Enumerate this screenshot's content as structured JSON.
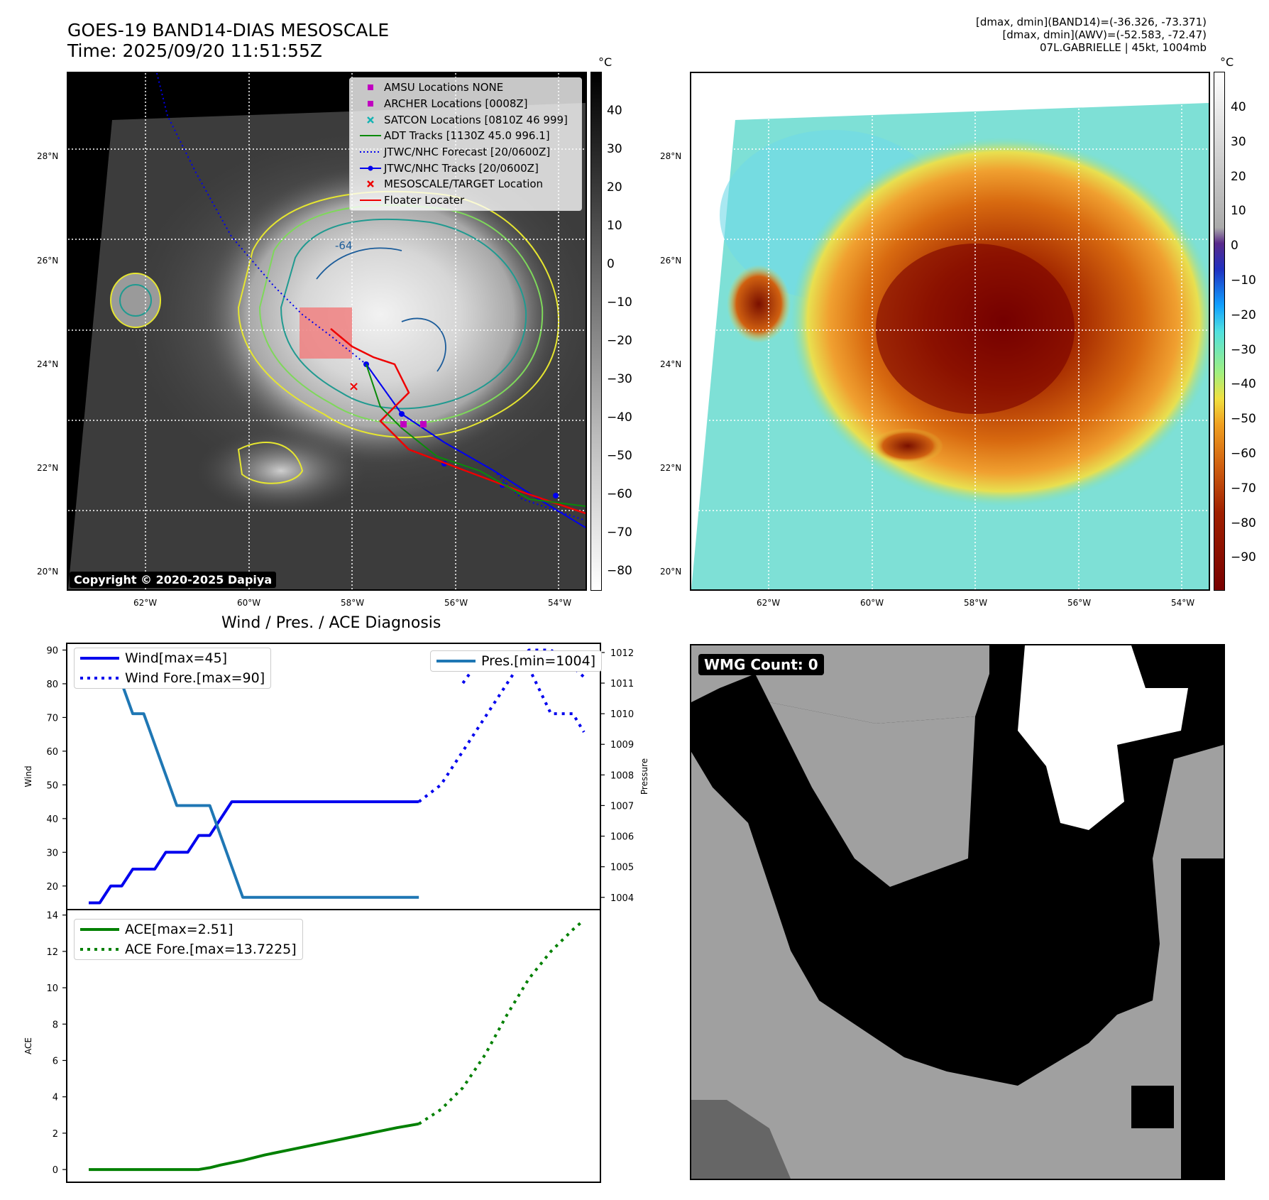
{
  "header": {
    "title_line1": "GOES-19 BAND14-DIAS MESOSCALE",
    "title_line2": "Time: 2025/09/20 11:51:55Z",
    "info_line1": "[dmax, dmin](BAND14)=(-36.326, -73.371)",
    "info_line2": "[dmax, dmin](AWV)=(-52.583, -72.47)",
    "info_line3": "07L.GABRIELLE | 45kt, 1004mb"
  },
  "map": {
    "lat_labels": [
      "28°N",
      "26°N",
      "24°N",
      "22°N",
      "20°N"
    ],
    "lon_labels": [
      "62°W",
      "60°W",
      "58°W",
      "56°W",
      "54°W"
    ],
    "copyright": "Copyright © 2020-2025 Dapiya",
    "contour_label": "-64",
    "legend": [
      {
        "label": "AMSU Locations NONE",
        "symbol": "square",
        "color": "#c000c0"
      },
      {
        "label": "ARCHER Locations [0008Z]",
        "symbol": "square",
        "color": "#c000c0"
      },
      {
        "label": "SATCON Locations [0810Z 46 999]",
        "symbol": "x",
        "color": "#16b3b3"
      },
      {
        "label": "ADT Tracks [1130Z 45.0 996.1]",
        "symbol": "line",
        "color": "#0a8a0a"
      },
      {
        "label": "JTWC/NHC Forecast [20/0600Z]",
        "symbol": "dotted",
        "color": "#0000ee"
      },
      {
        "label": "JTWC/NHC Tracks [20/0600Z]",
        "symbol": "line-dot",
        "color": "#0000ee"
      },
      {
        "label": "MESOSCALE/TARGET Location",
        "symbol": "x",
        "color": "#ee0000"
      },
      {
        "label": "Floater Locater",
        "symbol": "line",
        "color": "#ee0000"
      }
    ]
  },
  "colorbar_left": {
    "unit": "°C",
    "ticks": [
      "40",
      "30",
      "20",
      "10",
      "0",
      "−10",
      "−20",
      "−30",
      "−40",
      "−50",
      "−60",
      "−70",
      "−80"
    ]
  },
  "colorbar_right": {
    "unit": "°C",
    "ticks": [
      "40",
      "30",
      "20",
      "10",
      "0",
      "−10",
      "−20",
      "−30",
      "−40",
      "−50",
      "−60",
      "−70",
      "−80",
      "−90"
    ]
  },
  "wmg": {
    "label": "WMG Count: 0"
  },
  "chart_data": [
    {
      "type": "line",
      "title": "Wind / Pres. / ACE Diagnosis",
      "ylabel": "Wind",
      "y2label": "Pressure",
      "ylim": [
        13,
        92
      ],
      "y2lim": [
        1003.6,
        1012.3
      ],
      "yticks": [
        20,
        30,
        40,
        50,
        60,
        70,
        80,
        90
      ],
      "y2ticks": [
        1004,
        1005,
        1006,
        1007,
        1008,
        1009,
        1010,
        1011,
        1012
      ],
      "x": [
        0,
        1,
        2,
        3,
        4,
        5,
        6,
        7,
        8,
        9,
        10,
        11,
        12,
        13,
        14,
        15,
        16,
        17,
        18,
        19,
        20,
        21,
        22,
        23,
        24,
        25,
        26,
        27,
        28,
        29,
        30,
        31,
        32,
        33,
        34,
        35,
        36,
        37,
        38,
        39,
        40,
        41,
        42,
        43,
        44,
        45
      ],
      "xlim": [
        -2,
        46.5
      ],
      "series": [
        {
          "name": "Wind[max=45]",
          "axis": "left",
          "color": "#0000ee",
          "style": "solid",
          "x": [
            0,
            1,
            2,
            3,
            4,
            5,
            6,
            7,
            8,
            9,
            10,
            11,
            12,
            13,
            14,
            15,
            16,
            17,
            18,
            19,
            20,
            21,
            22,
            23,
            24,
            25,
            26,
            27,
            28,
            29,
            30
          ],
          "values": [
            15,
            15,
            20,
            20,
            25,
            25,
            25,
            30,
            30,
            30,
            35,
            35,
            40,
            45,
            45,
            45,
            45,
            45,
            45,
            45,
            45,
            45,
            45,
            45,
            45,
            45,
            45,
            45,
            45,
            45,
            45
          ]
        },
        {
          "name": "Wind Fore.[max=90]",
          "axis": "left",
          "color": "#0000ee",
          "style": "dotted",
          "x": [
            30,
            32,
            34,
            36,
            38,
            40,
            42,
            44,
            45
          ],
          "values": [
            45,
            50,
            60,
            70,
            80,
            90,
            90,
            85,
            82
          ]
        },
        {
          "name": "Pres.[min=1004]",
          "axis": "right",
          "color": "#1f77b4",
          "style": "solid",
          "x": [
            0,
            1,
            2,
            3,
            4,
            5,
            6,
            7,
            8,
            9,
            10,
            11,
            12,
            13,
            14,
            15,
            16,
            17,
            18,
            19,
            20,
            21,
            22,
            23,
            24,
            25,
            26,
            27,
            28,
            29,
            30
          ],
          "values": [
            1012,
            1012,
            1011,
            1011,
            1010,
            1010,
            1009,
            1008,
            1007,
            1007,
            1007,
            1007,
            1006,
            1005,
            1004,
            1004,
            1004,
            1004,
            1004,
            1004,
            1004,
            1004,
            1004,
            1004,
            1004,
            1004,
            1004,
            1004,
            1004,
            1004,
            1004
          ]
        },
        {
          "name": "",
          "axis": "right",
          "color": "#0000ee",
          "style": "dotted",
          "x": [
            34,
            36,
            38,
            40,
            42,
            44,
            45
          ],
          "values": [
            1011,
            1012,
            1012,
            1011.5,
            1010,
            1010,
            1009.4
          ]
        }
      ]
    },
    {
      "type": "line",
      "ylabel": "ACE",
      "ylim": [
        -0.7,
        14.3
      ],
      "yticks": [
        0,
        2,
        4,
        6,
        8,
        10,
        12,
        14
      ],
      "xlim": [
        -2,
        46.5
      ],
      "series": [
        {
          "name": "ACE[max=2.51]",
          "color": "#008000",
          "style": "solid",
          "x": [
            0,
            5,
            10,
            11,
            12,
            14,
            16,
            18,
            20,
            22,
            24,
            26,
            28,
            30
          ],
          "values": [
            0,
            0,
            0,
            0.1,
            0.25,
            0.5,
            0.8,
            1.05,
            1.3,
            1.55,
            1.8,
            2.05,
            2.3,
            2.51
          ]
        },
        {
          "name": "ACE Fore.[max=13.7225]",
          "color": "#008000",
          "style": "dotted",
          "x": [
            30,
            32,
            34,
            36,
            38,
            40,
            42,
            44,
            45
          ],
          "values": [
            2.51,
            3.3,
            4.5,
            6.3,
            8.5,
            10.5,
            12.0,
            13.2,
            13.72
          ]
        }
      ]
    }
  ]
}
